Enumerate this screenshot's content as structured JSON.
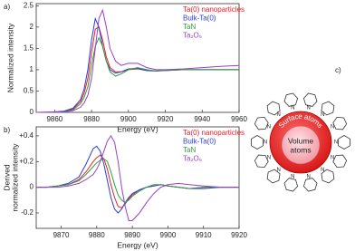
{
  "chart_data": [
    {
      "type": "line",
      "label": "a)",
      "xlabel": "Energy (eV)",
      "ylabel": "Normalized intensity",
      "xlim": [
        9850,
        9960
      ],
      "xticks": [
        9860,
        9880,
        9900,
        9920,
        9940,
        9960
      ],
      "ylim": [
        0,
        2.55
      ],
      "yticks": [
        0,
        0.5,
        1,
        1.5,
        2,
        2.5
      ],
      "x": [
        9850,
        9860,
        9865,
        9870,
        9874,
        9876,
        9878,
        9880,
        9882,
        9884,
        9886,
        9888,
        9890,
        9893,
        9896,
        9900,
        9905,
        9910,
        9915,
        9920,
        9930,
        9940,
        9950,
        9960
      ],
      "series": [
        {
          "name": "Ta(0) nanoparticles",
          "color": "#e8202a",
          "values": [
            0,
            0,
            0.02,
            0.08,
            0.25,
            0.45,
            0.8,
            1.4,
            1.95,
            2.0,
            1.7,
            1.3,
            1.05,
            0.95,
            0.95,
            1.0,
            1.02,
            0.98,
            0.97,
            0.98,
            1.0,
            1.0,
            1.0,
            1.0
          ]
        },
        {
          "name": "Bulk-Ta(0)",
          "color": "#2a3fd6",
          "values": [
            0,
            0.01,
            0.03,
            0.1,
            0.3,
            0.55,
            1.0,
            1.7,
            2.2,
            2.0,
            1.55,
            1.2,
            1.0,
            0.92,
            0.95,
            1.02,
            1.03,
            0.98,
            0.97,
            0.99,
            1.0,
            1.0,
            1.0,
            1.0
          ]
        },
        {
          "name": "TaN",
          "color": "#2e9e3a",
          "values": [
            0,
            0,
            0.02,
            0.06,
            0.2,
            0.35,
            0.6,
            1.1,
            1.55,
            1.75,
            1.55,
            1.2,
            0.95,
            0.85,
            0.9,
            1.0,
            1.05,
            1.0,
            0.97,
            0.98,
            1.0,
            1.0,
            1.0,
            1.0
          ]
        },
        {
          "name": "Ta₂O₅",
          "color": "#9b3fc8",
          "values": [
            0,
            0,
            0.01,
            0.04,
            0.12,
            0.22,
            0.4,
            0.8,
            1.5,
            2.2,
            2.4,
            2.0,
            1.5,
            1.2,
            1.1,
            1.15,
            1.15,
            1.05,
            1.0,
            1.0,
            1.02,
            1.05,
            1.08,
            1.1
          ]
        }
      ]
    },
    {
      "type": "line",
      "label": "b)",
      "xlabel": "Energy (eV)",
      "ylabel": [
        "Derived",
        "normalized intensity"
      ],
      "xlim": [
        9863,
        9920
      ],
      "xticks": [
        9870,
        9880,
        9890,
        9900,
        9910,
        9920
      ],
      "ylim": [
        -0.32,
        0.47
      ],
      "yticks": [
        -0.2,
        0,
        {
          "value": 0.2,
          "label": "+0.2"
        },
        {
          "value": 0.4,
          "label": "+0.4"
        }
      ],
      "x": [
        9863,
        9866,
        9869,
        9872,
        9875,
        9877,
        9879,
        9880,
        9881,
        9882,
        9883,
        9884,
        9885,
        9886,
        9887,
        9888,
        9889,
        9890,
        9892,
        9894,
        9896,
        9898,
        9900,
        9903,
        9906,
        9910,
        9915,
        9920
      ],
      "series": [
        {
          "name": "Ta(0) nanoparticles",
          "color": "#e8202a",
          "values": [
            0,
            0,
            0.01,
            0.02,
            0.06,
            0.12,
            0.2,
            0.23,
            0.25,
            0.22,
            0.14,
            0.02,
            -0.08,
            -0.15,
            -0.16,
            -0.13,
            -0.09,
            -0.06,
            -0.02,
            0,
            0.01,
            0.02,
            0.01,
            0,
            -0.01,
            0,
            0,
            0
          ]
        },
        {
          "name": "Bulk-Ta(0)",
          "color": "#2a3fd6",
          "values": [
            0,
            0,
            0.01,
            0.03,
            0.08,
            0.18,
            0.3,
            0.32,
            0.28,
            0.18,
            0.05,
            -0.08,
            -0.17,
            -0.2,
            -0.17,
            -0.12,
            -0.08,
            -0.05,
            -0.02,
            0,
            0.01,
            0.02,
            0.01,
            0,
            -0.01,
            -0.01,
            0,
            0
          ]
        },
        {
          "name": "TaN",
          "color": "#2e9e3a",
          "values": [
            0,
            0,
            0.01,
            0.02,
            0.05,
            0.1,
            0.16,
            0.19,
            0.21,
            0.22,
            0.2,
            0.12,
            0.02,
            -0.06,
            -0.1,
            -0.12,
            -0.1,
            -0.07,
            -0.03,
            0,
            0.02,
            0.02,
            0.01,
            0,
            -0.01,
            0,
            0,
            0
          ]
        },
        {
          "name": "Ta₂O₅",
          "color": "#9b3fc8",
          "values": [
            0,
            0,
            0,
            0.01,
            0.03,
            0.06,
            0.1,
            0.14,
            0.2,
            0.28,
            0.36,
            0.4,
            0.35,
            0.2,
            0,
            -0.15,
            -0.26,
            -0.26,
            -0.2,
            -0.12,
            -0.05,
            0,
            0.02,
            0.03,
            0.02,
            0.01,
            0,
            0
          ]
        }
      ]
    }
  ],
  "diagram": {
    "label": "c)",
    "core_label": [
      "Volume",
      "atoms"
    ],
    "shell_label": "Surface atoms",
    "ligand_atom": "N"
  }
}
